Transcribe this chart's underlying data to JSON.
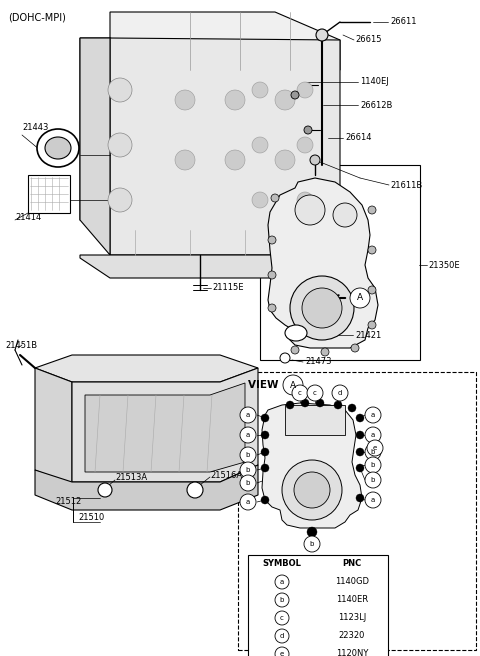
{
  "title": "(DOHC-MPI)",
  "bg": "#ffffff",
  "fg": "#000000",
  "symbol_table": {
    "headers": [
      "SYMBOL",
      "PNC"
    ],
    "rows": [
      [
        "a",
        "1140GD"
      ],
      [
        "b",
        "1140ER"
      ],
      [
        "c",
        "1123LJ"
      ],
      [
        "d",
        "22320"
      ],
      [
        "e",
        "1120NY"
      ]
    ]
  }
}
